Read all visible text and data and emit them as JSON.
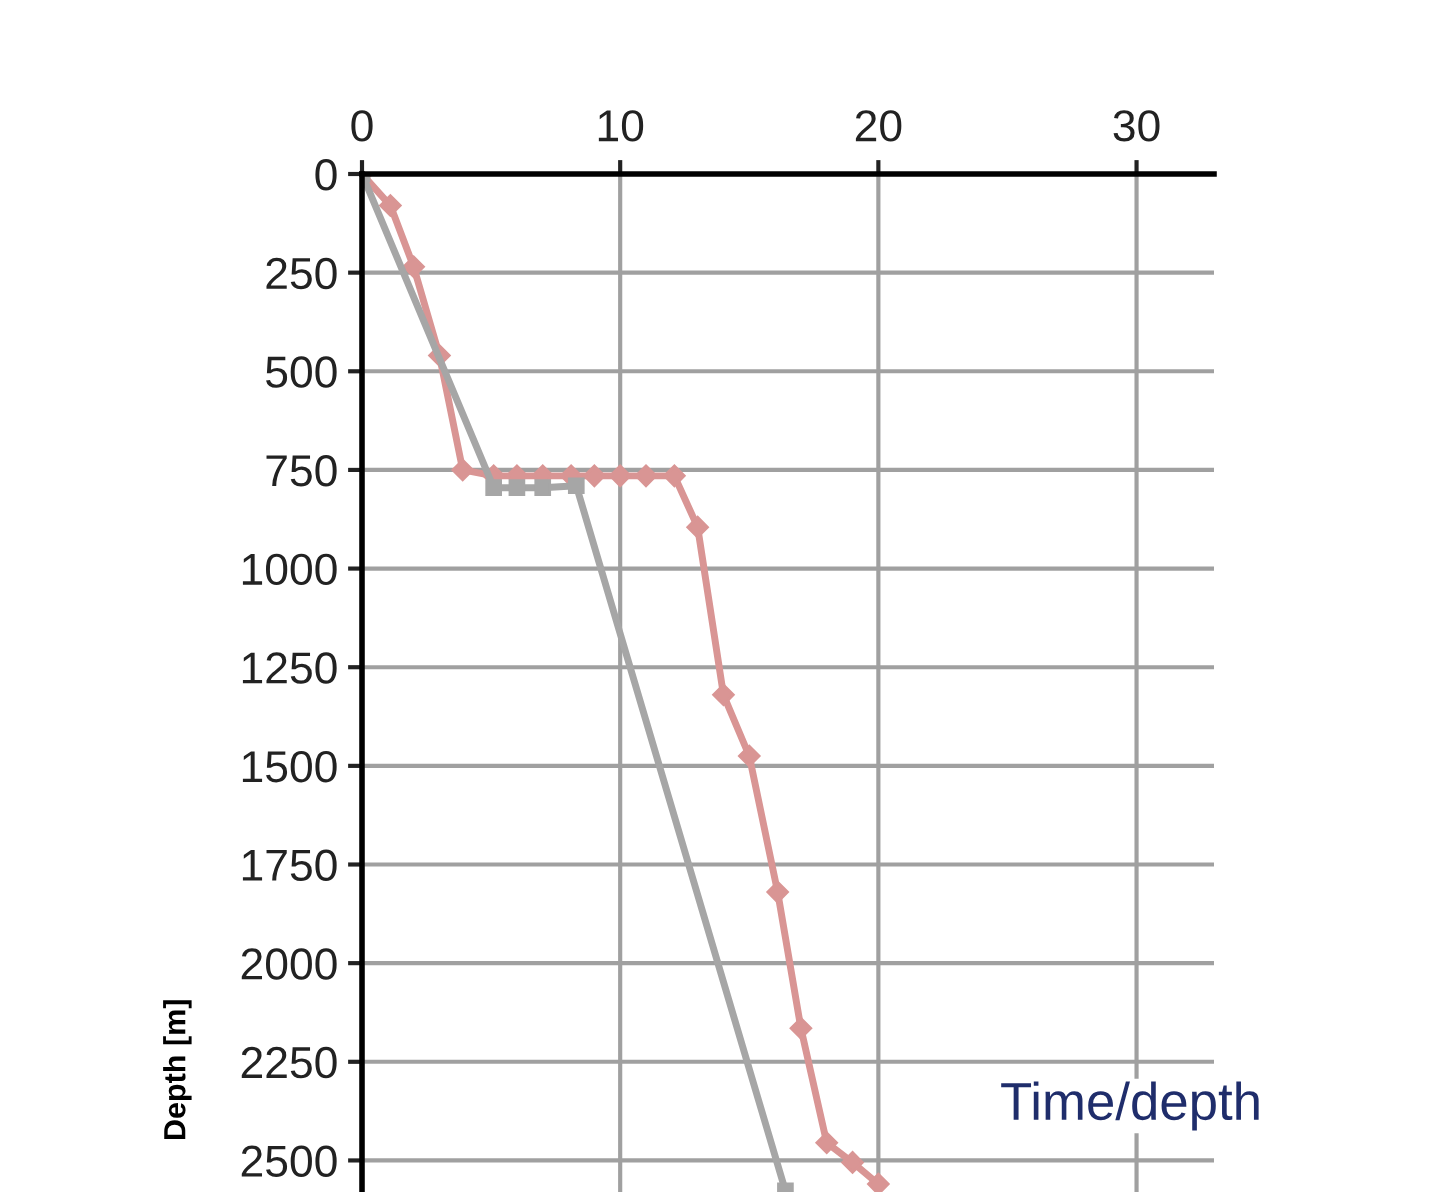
{
  "chart_data": {
    "type": "line",
    "ylabel": "Depth [m]",
    "annotations": [
      "Time/depth"
    ],
    "xlim": [
      0,
      33
    ],
    "xticks": [
      0,
      10,
      20,
      30
    ],
    "ylim": [
      2580,
      0
    ],
    "yticks": [
      0,
      250,
      500,
      750,
      1000,
      1250,
      1500,
      1750,
      2000,
      2250,
      2500
    ],
    "grid": true,
    "series": [
      {
        "color": "#d99594",
        "marker": "diamond",
        "x": [
          0,
          1.1,
          2.0,
          3.0,
          3.9,
          5.1,
          6.0,
          7.0,
          8.1,
          9.0,
          10.0,
          11.0,
          12.1,
          13.0,
          14.0,
          15.0,
          16.1,
          17.0,
          18.0,
          19.0,
          20.0
        ],
        "values": [
          0,
          80,
          235,
          460,
          750,
          765,
          765,
          765,
          765,
          765,
          765,
          765,
          765,
          895,
          1320,
          1475,
          1820,
          2165,
          2455,
          2505,
          2560
        ]
      },
      {
        "color": "#a6a6a6",
        "marker": "square",
        "x": [
          0,
          5.1,
          6.0,
          7.0,
          8.3,
          16.4
        ],
        "values": [
          0,
          795,
          795,
          795,
          790,
          2577
        ]
      }
    ]
  }
}
